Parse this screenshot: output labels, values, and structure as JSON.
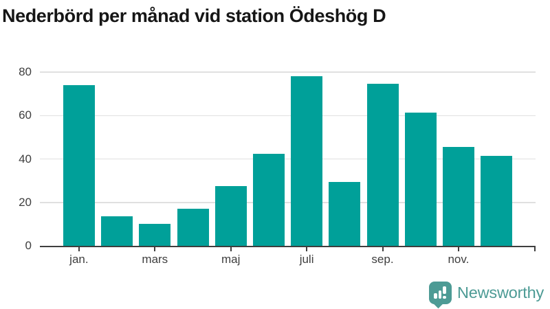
{
  "chart_data": {
    "type": "bar",
    "title": "Nederbörd per månad vid station Ödeshög D",
    "values": [
      74,
      13.5,
      10,
      17,
      27.5,
      42.5,
      78,
      29.5,
      74.5,
      61.5,
      45.5,
      41.5
    ],
    "x_tick_labels": [
      "jan.",
      "mars",
      "maj",
      "juli",
      "sep.",
      "nov."
    ],
    "x_tick_positions": [
      0,
      2,
      4,
      6,
      8,
      10
    ],
    "yticks": [
      0,
      20,
      40,
      60,
      80
    ],
    "ylim": [
      0,
      80
    ],
    "grid": "horizontal-only",
    "legend": "none",
    "bar_color": "#00a099",
    "axis_color": "#3e3e3e",
    "grid_color": "#e0e0e0"
  },
  "footer": {
    "brand": "Newsworthy",
    "brand_color": "#4d9b95"
  }
}
